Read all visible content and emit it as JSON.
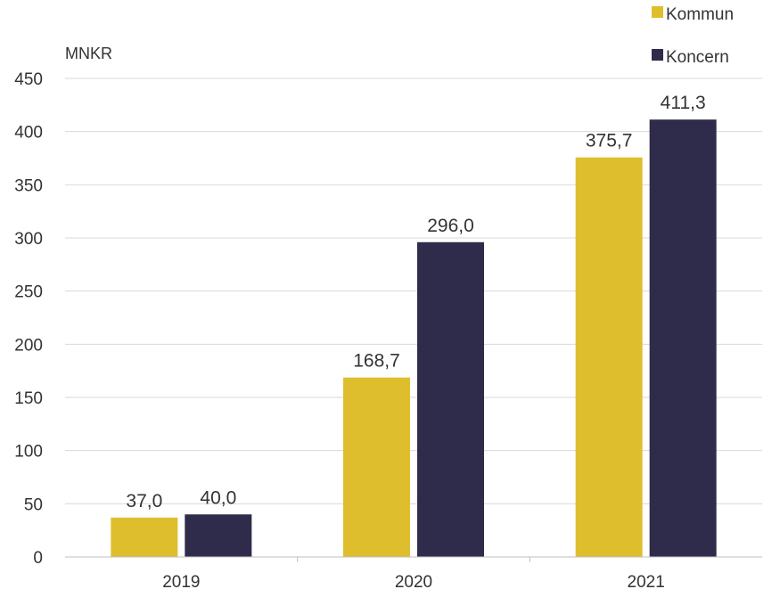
{
  "chart_data": {
    "type": "bar",
    "unit_label": "MNKR",
    "categories": [
      "2019",
      "2020",
      "2021"
    ],
    "series": [
      {
        "name": "Kommun",
        "color": "#dfbe2d",
        "values": [
          37.0,
          168.7,
          375.7
        ],
        "labels": [
          "37,0",
          "168,7",
          "375,7"
        ]
      },
      {
        "name": "Koncern",
        "color": "#2f2b4b",
        "values": [
          40.0,
          296.0,
          411.3
        ],
        "labels": [
          "40,0",
          "296,0",
          "411,3"
        ]
      }
    ],
    "ylim": [
      0,
      450
    ],
    "yticks": [
      0,
      50,
      100,
      150,
      200,
      250,
      300,
      350,
      400,
      450
    ],
    "grid": true,
    "legend_position": "top-right",
    "colors": {
      "gridline": "#d9d9d9",
      "axis": "#bfbfbf",
      "text": "#333333"
    }
  }
}
